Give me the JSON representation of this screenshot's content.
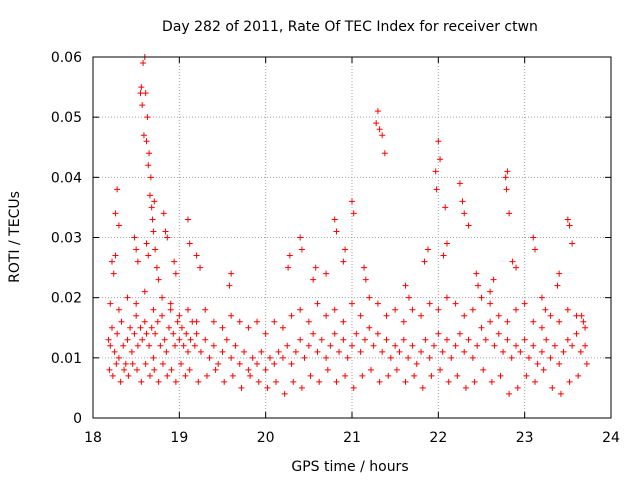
{
  "chart_data": {
    "type": "scatter",
    "title": "Day 282 of 2011, Rate Of TEC Index for receiver ctwn",
    "xlabel": "GPS time / hours",
    "ylabel": "ROTI / TECUs",
    "xlim": [
      18,
      24
    ],
    "ylim": [
      0,
      0.06
    ],
    "xticks": [
      18,
      19,
      20,
      21,
      22,
      23,
      24
    ],
    "yticks": [
      0,
      0.01,
      0.02,
      0.03,
      0.04,
      0.05,
      0.06
    ],
    "xtick_labels": [
      "18",
      "19",
      "20",
      "21",
      "22",
      "23",
      "24"
    ],
    "ytick_labels": [
      "0",
      "0.01",
      "0.02",
      "0.03",
      "0.04",
      "0.05",
      "0.06"
    ],
    "grid": true,
    "marker": "+",
    "marker_color": "#ff0000",
    "series": [
      {
        "name": "ROTI",
        "x": [
          18.18,
          18.2,
          18.22,
          18.25,
          18.28,
          18.3,
          18.33,
          18.35,
          18.38,
          18.4,
          18.43,
          18.45,
          18.48,
          18.5,
          18.52,
          18.55,
          18.57,
          18.6,
          18.62,
          18.65,
          18.68,
          18.7,
          18.72,
          18.75,
          18.78,
          18.8,
          18.83,
          18.85,
          18.88,
          18.9,
          18.93,
          18.95,
          18.98,
          19.0,
          19.03,
          19.05,
          19.08,
          19.1,
          19.13,
          19.15,
          19.18,
          19.2,
          19.25,
          19.3,
          19.35,
          19.4,
          19.45,
          19.5,
          19.55,
          19.6,
          19.65,
          19.7,
          19.75,
          19.8,
          19.85,
          19.9,
          19.95,
          20.0,
          20.05,
          20.1,
          20.15,
          20.2,
          20.25,
          20.3,
          20.35,
          20.4,
          20.45,
          20.5,
          20.55,
          20.6,
          20.65,
          20.7,
          20.75,
          20.8,
          20.85,
          20.9,
          20.95,
          21.0,
          21.05,
          21.1,
          21.15,
          21.2,
          21.25,
          21.3,
          21.35,
          21.4,
          21.45,
          21.5,
          21.55,
          21.6,
          21.65,
          21.7,
          21.75,
          21.8,
          21.85,
          21.9,
          21.95,
          22.0,
          22.05,
          22.1,
          22.15,
          22.2,
          22.25,
          22.3,
          22.35,
          22.4,
          22.45,
          22.5,
          22.55,
          22.6,
          22.65,
          22.7,
          22.75,
          22.8,
          22.85,
          22.9,
          22.95,
          23.0,
          23.05,
          23.1,
          23.15,
          23.2,
          23.25,
          23.3,
          23.35,
          23.4,
          23.45,
          23.5,
          23.55,
          23.6,
          23.65,
          23.7,
          18.19,
          18.23,
          18.27,
          18.32,
          18.36,
          18.41,
          18.46,
          18.51,
          18.56,
          18.61,
          18.66,
          18.71,
          18.76,
          18.81,
          18.86,
          18.91,
          18.96,
          19.02,
          19.07,
          19.12,
          19.22,
          19.32,
          19.42,
          19.52,
          19.62,
          19.72,
          19.82,
          19.92,
          20.02,
          20.12,
          20.22,
          20.32,
          20.42,
          20.52,
          20.62,
          20.72,
          20.82,
          20.92,
          21.02,
          21.12,
          21.22,
          21.32,
          21.42,
          21.52,
          21.62,
          21.72,
          21.82,
          21.92,
          22.02,
          22.12,
          22.22,
          22.32,
          22.42,
          22.52,
          22.62,
          22.72,
          22.82,
          22.92,
          23.02,
          23.12,
          23.22,
          23.32,
          23.42,
          23.52,
          23.62,
          23.72,
          18.55,
          18.56,
          18.57,
          18.58,
          18.59,
          18.6,
          18.61,
          18.62,
          18.63,
          18.64,
          18.65,
          18.66,
          18.67,
          18.68,
          18.69,
          18.7,
          18.71,
          18.72,
          18.26,
          18.28,
          18.3,
          18.82,
          18.84,
          18.86,
          19.1,
          19.12,
          20.4,
          20.42,
          20.8,
          20.82,
          21.0,
          21.02,
          21.28,
          21.3,
          21.32,
          21.35,
          21.38,
          21.97,
          21.98,
          22.0,
          22.02,
          22.08,
          22.25,
          22.28,
          22.3,
          22.35,
          22.78,
          22.79,
          22.8,
          22.82,
          23.1,
          23.12,
          23.5,
          23.52,
          23.55,
          18.22,
          18.24,
          18.26,
          18.48,
          18.5,
          18.52,
          18.62,
          18.64,
          18.74,
          18.76,
          18.94,
          18.96,
          19.2,
          19.24,
          19.58,
          19.6,
          20.26,
          20.28,
          20.55,
          20.58,
          20.7,
          20.9,
          20.92,
          21.14,
          21.16,
          21.62,
          21.66,
          21.84,
          21.88,
          22.06,
          22.1,
          22.44,
          22.46,
          22.6,
          22.64,
          22.86,
          22.9,
          23.2,
          23.24,
          23.38,
          23.4,
          23.66,
          23.68,
          18.2,
          18.3,
          18.4,
          18.5,
          18.6,
          18.7,
          18.8,
          18.9,
          19.0,
          19.1,
          19.2,
          19.3,
          19.4,
          19.5,
          19.6,
          19.7,
          19.8,
          19.9,
          20.0,
          20.1,
          20.2,
          20.3,
          20.4,
          20.5,
          20.6,
          20.7,
          20.8,
          20.9,
          21.0,
          21.1,
          21.2,
          21.3,
          21.4,
          21.5,
          21.6,
          21.7,
          21.8,
          21.9,
          22.0,
          22.1,
          22.2,
          22.3,
          22.4,
          22.5,
          22.6,
          22.7,
          22.8,
          22.9,
          23.0,
          23.1,
          23.2,
          23.3,
          23.4,
          23.5,
          23.6,
          23.7
        ],
        "y": [
          0.013,
          0.012,
          0.015,
          0.011,
          0.014,
          0.01,
          0.016,
          0.012,
          0.009,
          0.013,
          0.015,
          0.011,
          0.014,
          0.017,
          0.012,
          0.015,
          0.013,
          0.016,
          0.014,
          0.012,
          0.015,
          0.01,
          0.014,
          0.016,
          0.012,
          0.017,
          0.013,
          0.011,
          0.015,
          0.018,
          0.014,
          0.012,
          0.016,
          0.013,
          0.015,
          0.012,
          0.014,
          0.011,
          0.013,
          0.016,
          0.012,
          0.014,
          0.011,
          0.013,
          0.01,
          0.012,
          0.009,
          0.011,
          0.013,
          0.01,
          0.012,
          0.009,
          0.011,
          0.008,
          0.01,
          0.009,
          0.011,
          0.008,
          0.01,
          0.009,
          0.011,
          0.01,
          0.012,
          0.009,
          0.011,
          0.013,
          0.01,
          0.012,
          0.014,
          0.011,
          0.013,
          0.01,
          0.012,
          0.014,
          0.011,
          0.013,
          0.01,
          0.012,
          0.014,
          0.011,
          0.013,
          0.015,
          0.012,
          0.014,
          0.011,
          0.013,
          0.01,
          0.012,
          0.011,
          0.013,
          0.01,
          0.012,
          0.009,
          0.011,
          0.013,
          0.01,
          0.012,
          0.014,
          0.011,
          0.013,
          0.01,
          0.012,
          0.014,
          0.011,
          0.013,
          0.01,
          0.012,
          0.015,
          0.013,
          0.016,
          0.012,
          0.014,
          0.011,
          0.013,
          0.01,
          0.012,
          0.011,
          0.013,
          0.01,
          0.012,
          0.009,
          0.011,
          0.013,
          0.01,
          0.012,
          0.009,
          0.011,
          0.013,
          0.012,
          0.014,
          0.011,
          0.012,
          0.008,
          0.007,
          0.009,
          0.006,
          0.008,
          0.007,
          0.009,
          0.008,
          0.006,
          0.009,
          0.007,
          0.008,
          0.006,
          0.009,
          0.007,
          0.008,
          0.006,
          0.009,
          0.007,
          0.008,
          0.006,
          0.007,
          0.008,
          0.006,
          0.007,
          0.005,
          0.007,
          0.006,
          0.005,
          0.006,
          0.004,
          0.006,
          0.005,
          0.007,
          0.006,
          0.008,
          0.006,
          0.007,
          0.005,
          0.007,
          0.008,
          0.006,
          0.007,
          0.008,
          0.006,
          0.007,
          0.005,
          0.007,
          0.008,
          0.006,
          0.007,
          0.005,
          0.006,
          0.008,
          0.006,
          0.007,
          0.004,
          0.005,
          0.007,
          0.006,
          0.008,
          0.005,
          0.004,
          0.006,
          0.007,
          0.009,
          0.054,
          0.055,
          0.052,
          0.059,
          0.047,
          0.06,
          0.054,
          0.046,
          0.05,
          0.042,
          0.044,
          0.037,
          0.04,
          0.035,
          0.033,
          0.031,
          0.036,
          0.028,
          0.034,
          0.038,
          0.032,
          0.034,
          0.031,
          0.03,
          0.033,
          0.029,
          0.03,
          0.028,
          0.033,
          0.031,
          0.036,
          0.034,
          0.049,
          0.051,
          0.048,
          0.047,
          0.044,
          0.041,
          0.038,
          0.046,
          0.043,
          0.035,
          0.039,
          0.036,
          0.034,
          0.032,
          0.04,
          0.038,
          0.041,
          0.034,
          0.03,
          0.028,
          0.033,
          0.032,
          0.029,
          0.026,
          0.024,
          0.027,
          0.03,
          0.028,
          0.026,
          0.029,
          0.027,
          0.025,
          0.023,
          0.026,
          0.024,
          0.027,
          0.025,
          0.022,
          0.024,
          0.025,
          0.027,
          0.023,
          0.025,
          0.024,
          0.026,
          0.028,
          0.025,
          0.023,
          0.022,
          0.02,
          0.026,
          0.028,
          0.027,
          0.029,
          0.024,
          0.022,
          0.021,
          0.023,
          0.026,
          0.025,
          0.02,
          0.018,
          0.022,
          0.024,
          0.017,
          0.016,
          0.019,
          0.018,
          0.02,
          0.019,
          0.021,
          0.018,
          0.02,
          0.019,
          0.017,
          0.018,
          0.016,
          0.018,
          0.016,
          0.015,
          0.017,
          0.016,
          0.015,
          0.016,
          0.014,
          0.016,
          0.015,
          0.017,
          0.018,
          0.016,
          0.019,
          0.017,
          0.018,
          0.016,
          0.019,
          0.017,
          0.02,
          0.019,
          0.017,
          0.018,
          0.016,
          0.018,
          0.017,
          0.019,
          0.018,
          0.02,
          0.019,
          0.017,
          0.018,
          0.02,
          0.019,
          0.017,
          0.016,
          0.018,
          0.019,
          0.016,
          0.015,
          0.017,
          0.016,
          0.018,
          0.017,
          0.015
        ]
      }
    ]
  }
}
